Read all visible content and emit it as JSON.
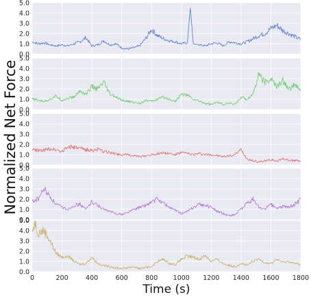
{
  "chart_data": {
    "type": "line",
    "layout": "5 stacked panels sharing x axis",
    "xlabel": "Time (s)",
    "ylabel": "Normalized Net Force",
    "xlim": [
      0,
      1800
    ],
    "ylim": [
      0,
      5.0
    ],
    "xticks": [
      "0",
      "200",
      "400",
      "600",
      "800",
      "1000",
      "1200",
      "1400",
      "1600",
      "1800"
    ],
    "yticks": [
      "0.0",
      "1.0",
      "2.0",
      "3.0",
      "4.0",
      "5.0"
    ],
    "grid": true,
    "background": "#e9e9f1",
    "series": [
      {
        "color": "#5b7fd0",
        "x": [
          0,
          40,
          80,
          120,
          160,
          200,
          240,
          280,
          320,
          360,
          400,
          440,
          480,
          520,
          560,
          600,
          640,
          680,
          720,
          760,
          800,
          840,
          880,
          920,
          960,
          1000,
          1040,
          1060,
          1080,
          1120,
          1160,
          1200,
          1240,
          1280,
          1320,
          1360,
          1400,
          1440,
          1480,
          1520,
          1560,
          1600,
          1640,
          1680,
          1720,
          1760,
          1800
        ],
        "y": [
          1.2,
          1.0,
          1.1,
          0.9,
          0.8,
          0.9,
          0.8,
          1.0,
          1.2,
          1.6,
          0.8,
          0.9,
          1.3,
          0.9,
          1.0,
          0.6,
          0.5,
          0.6,
          0.8,
          1.5,
          2.4,
          1.8,
          1.5,
          1.3,
          1.2,
          1.0,
          1.1,
          4.5,
          1.0,
          0.9,
          0.8,
          1.0,
          1.1,
          0.8,
          1.2,
          1.1,
          1.0,
          1.2,
          1.5,
          1.8,
          2.0,
          2.5,
          2.8,
          2.3,
          2.0,
          1.7,
          1.4
        ]
      },
      {
        "color": "#6ccc6c",
        "x": [
          0,
          40,
          80,
          120,
          160,
          200,
          240,
          280,
          320,
          360,
          400,
          440,
          480,
          520,
          560,
          600,
          640,
          680,
          720,
          760,
          800,
          840,
          880,
          920,
          960,
          1000,
          1040,
          1080,
          1120,
          1160,
          1200,
          1240,
          1280,
          1320,
          1360,
          1400,
          1440,
          1480,
          1520,
          1560,
          1600,
          1640,
          1680,
          1720,
          1760,
          1800
        ],
        "y": [
          1.0,
          0.9,
          0.8,
          1.0,
          1.3,
          0.9,
          1.1,
          1.2,
          1.8,
          1.5,
          2.2,
          2.0,
          2.6,
          1.5,
          1.2,
          0.9,
          0.8,
          0.7,
          0.6,
          0.9,
          0.8,
          1.0,
          1.2,
          1.0,
          0.8,
          1.5,
          1.4,
          1.0,
          0.8,
          0.6,
          0.5,
          0.7,
          0.5,
          0.6,
          0.5,
          1.2,
          1.0,
          1.5,
          3.5,
          2.6,
          3.0,
          2.2,
          2.8,
          2.0,
          2.4,
          1.8
        ]
      },
      {
        "color": "#e07070",
        "x": [
          0,
          40,
          80,
          120,
          160,
          200,
          240,
          280,
          320,
          360,
          400,
          440,
          480,
          520,
          560,
          600,
          640,
          680,
          720,
          760,
          800,
          840,
          880,
          920,
          960,
          1000,
          1040,
          1080,
          1120,
          1160,
          1200,
          1240,
          1280,
          1320,
          1360,
          1400,
          1440,
          1480,
          1520,
          1560,
          1600,
          1640,
          1680,
          1720,
          1760,
          1800
        ],
        "y": [
          1.5,
          1.4,
          1.4,
          1.6,
          1.5,
          1.3,
          1.8,
          1.7,
          1.6,
          1.5,
          1.4,
          1.5,
          1.3,
          1.2,
          1.1,
          1.0,
          1.0,
          0.9,
          0.8,
          0.9,
          1.0,
          1.1,
          1.2,
          1.1,
          1.0,
          1.2,
          1.1,
          1.0,
          1.1,
          1.0,
          1.0,
          0.9,
          0.8,
          0.9,
          1.0,
          1.5,
          0.6,
          0.4,
          0.3,
          0.4,
          0.5,
          0.4,
          0.6,
          0.5,
          0.4,
          0.4
        ]
      },
      {
        "color": "#b07cd6",
        "x": [
          0,
          40,
          80,
          120,
          160,
          200,
          240,
          280,
          320,
          360,
          400,
          440,
          480,
          520,
          560,
          600,
          640,
          680,
          720,
          760,
          800,
          840,
          880,
          920,
          960,
          1000,
          1040,
          1080,
          1120,
          1160,
          1200,
          1240,
          1280,
          1320,
          1360,
          1400,
          1440,
          1480,
          1520,
          1560,
          1600,
          1640,
          1680,
          1720,
          1760,
          1800
        ],
        "y": [
          1.8,
          2.0,
          3.0,
          2.2,
          1.5,
          1.2,
          1.0,
          1.4,
          1.5,
          1.0,
          1.8,
          1.4,
          1.0,
          0.8,
          0.6,
          0.5,
          0.7,
          1.0,
          1.2,
          1.4,
          1.7,
          2.0,
          1.6,
          1.2,
          0.9,
          0.6,
          0.8,
          1.2,
          1.5,
          1.4,
          1.2,
          0.8,
          0.6,
          0.4,
          0.5,
          1.0,
          1.6,
          2.0,
          1.2,
          1.0,
          1.5,
          1.1,
          1.3,
          1.2,
          1.5,
          2.0
        ]
      },
      {
        "color": "#c8b068",
        "x": [
          0,
          20,
          40,
          80,
          120,
          160,
          200,
          240,
          280,
          320,
          360,
          400,
          440,
          480,
          520,
          560,
          600,
          640,
          680,
          720,
          760,
          800,
          840,
          880,
          920,
          960,
          1000,
          1040,
          1080,
          1120,
          1160,
          1200,
          1240,
          1280,
          1320,
          1360,
          1400,
          1440,
          1480,
          1520,
          1560,
          1600,
          1640,
          1680,
          1720,
          1760,
          1800
        ],
        "y": [
          4.0,
          4.8,
          3.8,
          4.0,
          3.0,
          1.8,
          1.4,
          1.6,
          1.0,
          0.7,
          0.8,
          1.4,
          0.8,
          0.6,
          0.5,
          0.4,
          0.3,
          0.4,
          0.5,
          0.3,
          0.4,
          0.5,
          1.0,
          1.2,
          0.8,
          0.7,
          1.2,
          1.5,
          1.4,
          1.2,
          1.6,
          1.0,
          1.2,
          0.8,
          0.6,
          0.5,
          0.8,
          0.6,
          1.0,
          1.2,
          0.9,
          0.8,
          1.2,
          0.9,
          1.0,
          0.8,
          0.7
        ]
      }
    ]
  }
}
